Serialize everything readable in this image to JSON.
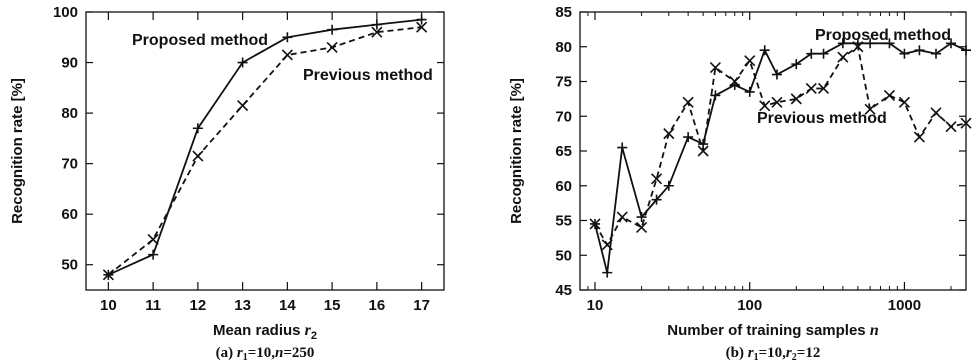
{
  "chart_data": [
    {
      "type": "line",
      "xlabel": "Mean radius",
      "xlabel_var": "r",
      "xlabel_sub": "2",
      "ylabel": "Recognition rate [%]",
      "xlim": [
        9.5,
        17.5
      ],
      "ylim": [
        45,
        100
      ],
      "xticks": [
        10,
        11,
        12,
        13,
        14,
        15,
        16,
        17
      ],
      "yticks": [
        50,
        60,
        70,
        80,
        90,
        100
      ],
      "grid": false,
      "x": [
        10,
        11,
        12,
        13,
        14,
        15,
        16,
        17
      ],
      "series": [
        {
          "name": "Proposed method",
          "style": "solid",
          "marker": "plus",
          "values": [
            48,
            52,
            77,
            90,
            95,
            96.5,
            97.5,
            98.5
          ]
        },
        {
          "name": "Previous method",
          "style": "dashed",
          "marker": "x",
          "values": [
            48,
            55,
            71.5,
            81.5,
            91.5,
            93,
            96,
            97
          ]
        }
      ],
      "caption": {
        "label": "(a) ",
        "r1": "10",
        "n": "250"
      }
    },
    {
      "type": "line",
      "xlabel": "Number of training samples",
      "xlabel_var": "n",
      "ylabel": "Recognition rate [%]",
      "xscale": "log",
      "xlim": [
        8,
        2500
      ],
      "ylim": [
        45,
        85
      ],
      "xticks": [
        10,
        100,
        1000
      ],
      "yticks": [
        45,
        50,
        55,
        60,
        65,
        70,
        75,
        80,
        85
      ],
      "grid": false,
      "series": [
        {
          "name": "Proposed method",
          "style": "solid",
          "marker": "plus",
          "x": [
            10,
            12,
            15,
            20,
            25,
            30,
            40,
            50,
            60,
            80,
            100,
            125,
            150,
            200,
            250,
            300,
            400,
            500,
            600,
            800,
            1000,
            1250,
            1600,
            2000,
            2500
          ],
          "values": [
            54.5,
            47.5,
            65.5,
            55.5,
            58,
            60,
            67,
            66,
            73,
            74.5,
            73.5,
            79.5,
            76,
            77.5,
            79,
            79,
            80.5,
            80.5,
            80.5,
            80.5,
            79,
            79.5,
            79,
            80.5,
            79.5
          ]
        },
        {
          "name": "Previous method",
          "style": "dashed",
          "marker": "x",
          "x": [
            10,
            12,
            15,
            20,
            25,
            30,
            40,
            50,
            60,
            80,
            100,
            125,
            150,
            200,
            250,
            300,
            400,
            500,
            600,
            800,
            1000,
            1250,
            1600,
            2000,
            2500
          ],
          "values": [
            54.5,
            51.5,
            55.5,
            54,
            61,
            67.5,
            72,
            65,
            77,
            75,
            78,
            71.5,
            72,
            72.5,
            74,
            74,
            78.5,
            80,
            71,
            73,
            72,
            67,
            70.5,
            68.5,
            69
          ]
        }
      ],
      "caption": {
        "label": "(b) ",
        "r1": "10",
        "r2": "12"
      }
    }
  ]
}
